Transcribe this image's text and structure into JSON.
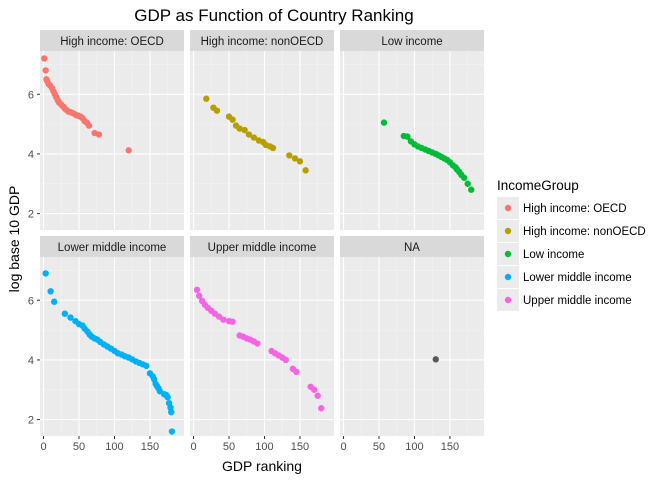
{
  "chart_data": {
    "type": "scatter",
    "title": "GDP as Function of Country Ranking",
    "xlabel": "GDP ranking",
    "ylabel": "log base 10 GDP",
    "xlim": [
      -5,
      198
    ],
    "ylim": [
      1.45,
      7.45
    ],
    "xticks": [
      0,
      50,
      100,
      150
    ],
    "yticks": [
      2,
      4,
      6
    ],
    "grid": true,
    "facet_layout": "2x3",
    "legend": {
      "title": "IncomeGroup",
      "placement": "right",
      "entries": [
        {
          "name": "High income: OECD",
          "color": "#F8766D"
        },
        {
          "name": "High income: nonOECD",
          "color": "#B79F00"
        },
        {
          "name": "Low income",
          "color": "#00BA38"
        },
        {
          "name": "Lower middle income",
          "color": "#00B0F6"
        },
        {
          "name": "Upper middle income",
          "color": "#F564E3"
        }
      ]
    },
    "facets": [
      {
        "label": "High income: OECD",
        "color": "#F8766D",
        "x": [
          1,
          3,
          4,
          5,
          7,
          9,
          12,
          14,
          16,
          18,
          20,
          22,
          25,
          28,
          30,
          32,
          35,
          38,
          40,
          43,
          46,
          49,
          52,
          55,
          58,
          61,
          64,
          72,
          78,
          120
        ],
        "y": [
          7.2,
          6.8,
          6.5,
          6.45,
          6.35,
          6.3,
          6.2,
          6.1,
          6.0,
          5.9,
          5.8,
          5.72,
          5.65,
          5.58,
          5.52,
          5.48,
          5.42,
          5.4,
          5.38,
          5.35,
          5.3,
          5.28,
          5.25,
          5.2,
          5.1,
          5.05,
          4.95,
          4.7,
          4.65,
          4.12
        ]
      },
      {
        "label": "High income: nonOECD",
        "color": "#B79F00",
        "x": [
          18,
          28,
          33,
          50,
          55,
          60,
          65,
          72,
          78,
          85,
          92,
          98,
          102,
          108,
          112,
          135,
          143,
          150,
          158
        ],
        "y": [
          5.85,
          5.55,
          5.45,
          5.25,
          5.15,
          4.95,
          4.85,
          4.8,
          4.65,
          4.55,
          4.45,
          4.4,
          4.3,
          4.25,
          4.2,
          3.95,
          3.85,
          3.75,
          3.45
        ]
      },
      {
        "label": "Low income",
        "color": "#00BA38",
        "x": [
          57,
          85,
          90,
          95,
          100,
          105,
          110,
          115,
          120,
          125,
          130,
          134,
          138,
          142,
          146,
          150,
          154,
          158,
          160,
          163,
          166,
          170,
          175,
          180
        ],
        "y": [
          5.05,
          4.6,
          4.58,
          4.42,
          4.32,
          4.25,
          4.2,
          4.15,
          4.1,
          4.05,
          4.0,
          3.95,
          3.9,
          3.85,
          3.8,
          3.72,
          3.62,
          3.55,
          3.48,
          3.4,
          3.3,
          3.2,
          3.0,
          2.8
        ]
      },
      {
        "label": "Lower middle income",
        "color": "#00B0F6",
        "x": [
          3,
          10,
          15,
          30,
          38,
          45,
          50,
          55,
          58,
          62,
          65,
          68,
          72,
          76,
          80,
          85,
          90,
          95,
          100,
          105,
          110,
          115,
          120,
          125,
          130,
          135,
          140,
          145,
          150,
          154,
          156,
          158,
          160,
          162,
          164,
          170,
          173,
          175,
          177,
          179,
          180,
          181
        ],
        "y": [
          6.9,
          6.3,
          5.95,
          5.55,
          5.42,
          5.3,
          5.2,
          5.15,
          5.05,
          4.95,
          4.85,
          4.78,
          4.72,
          4.68,
          4.6,
          4.52,
          4.45,
          4.38,
          4.3,
          4.22,
          4.18,
          4.12,
          4.08,
          4.02,
          3.95,
          3.9,
          3.85,
          3.8,
          3.55,
          3.45,
          3.35,
          3.2,
          3.12,
          3.05,
          2.95,
          2.85,
          2.82,
          2.75,
          2.55,
          2.4,
          2.25,
          1.6
        ]
      },
      {
        "label": "Upper middle income",
        "color": "#F564E3",
        "x": [
          5,
          8,
          12,
          16,
          20,
          25,
          30,
          36,
          42,
          50,
          55,
          65,
          70,
          75,
          80,
          85,
          90,
          110,
          115,
          120,
          125,
          130,
          140,
          145,
          165,
          170,
          175,
          180
        ],
        "y": [
          6.35,
          6.15,
          5.98,
          5.85,
          5.75,
          5.65,
          5.55,
          5.45,
          5.35,
          5.3,
          5.28,
          4.82,
          4.78,
          4.72,
          4.68,
          4.62,
          4.55,
          4.3,
          4.22,
          4.15,
          4.08,
          4.0,
          3.7,
          3.6,
          3.1,
          3.0,
          2.8,
          2.38
        ]
      },
      {
        "label": "NA",
        "color": "#595959",
        "x": [
          130
        ],
        "y": [
          4.02
        ]
      }
    ]
  }
}
